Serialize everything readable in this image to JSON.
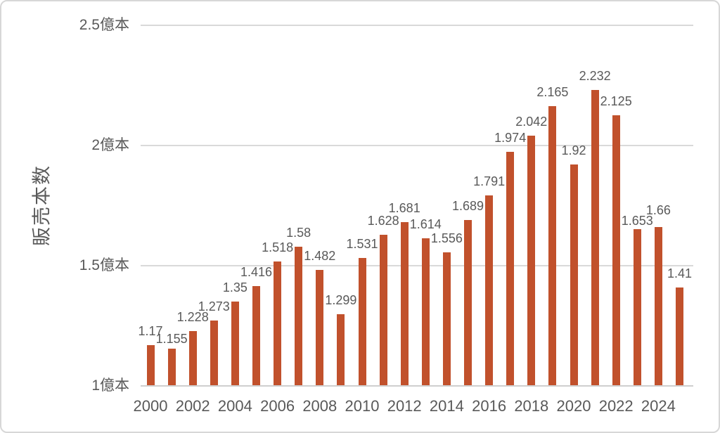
{
  "chart_data": {
    "type": "bar",
    "title": "",
    "xlabel": "",
    "ylabel": "販売本数",
    "categories": [
      "2000",
      "2001",
      "2002",
      "2003",
      "2004",
      "2005",
      "2006",
      "2007",
      "2008",
      "2009",
      "2010",
      "2011",
      "2012",
      "2013",
      "2014",
      "2015",
      "2016",
      "2017",
      "2018",
      "2019",
      "2020",
      "2021",
      "2022",
      "2023",
      "2024",
      "2025"
    ],
    "values": [
      1.17,
      1.155,
      1.228,
      1.273,
      1.35,
      1.416,
      1.518,
      1.58,
      1.482,
      1.299,
      1.531,
      1.628,
      1.681,
      1.614,
      1.556,
      1.689,
      1.791,
      1.974,
      2.042,
      2.165,
      1.92,
      2.232,
      2.125,
      1.653,
      1.66,
      1.41
    ],
    "value_labels": [
      "1.17",
      "1.155",
      "1.228",
      "1.273",
      "1.35",
      "1.416",
      "1.518",
      "1.58",
      "1.482",
      "1.299",
      "1.531",
      "1.628",
      "1.681",
      "1.614",
      "1.556",
      "1.689",
      "1.791",
      "1.974",
      "2.042",
      "2.165",
      "1.92",
      "2.232",
      "2.125",
      "1.653",
      "1.66",
      "1.41"
    ],
    "yticks": [
      {
        "value": 1,
        "label": "1億本"
      },
      {
        "value": 1.5,
        "label": "1.5億本"
      },
      {
        "value": 2,
        "label": "2億本"
      },
      {
        "value": 2.5,
        "label": "2.5億本"
      }
    ],
    "xtick_labels": [
      "2000",
      "2002",
      "2004",
      "2006",
      "2008",
      "2010",
      "2012",
      "2014",
      "2016",
      "2018",
      "2020",
      "2022",
      "2024"
    ],
    "ylim": [
      1,
      2.5
    ],
    "grid": "horizontal",
    "legend": "none",
    "bar_color": "#c1512c",
    "text_color": "#595959",
    "grid_color": "#d9d9d9",
    "label_dy": {
      "1": 6,
      "23": 8,
      "24": -4
    }
  }
}
